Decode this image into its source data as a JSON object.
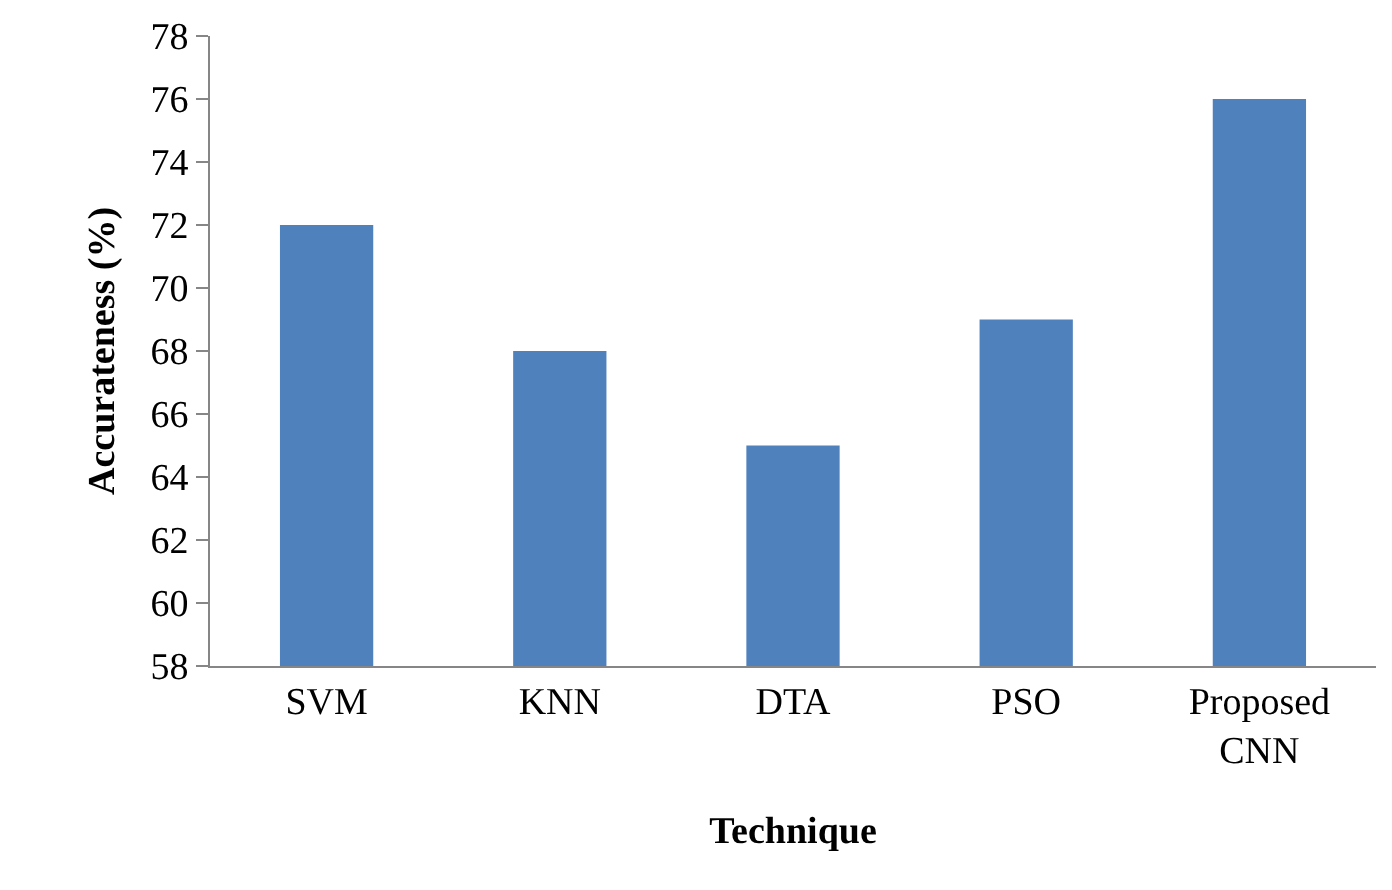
{
  "chart_data": {
    "type": "bar",
    "xlabel": "Technique",
    "ylabel": "Accurateness (%)",
    "categories": [
      "SVM",
      "KNN",
      "DTA",
      "PSO",
      "Proposed CNN"
    ],
    "values": [
      72,
      68,
      65,
      69,
      76
    ],
    "color": "#4f81bd",
    "ylim": [
      58,
      78
    ],
    "yticks": [
      58,
      60,
      62,
      64,
      66,
      68,
      70,
      72,
      74,
      76,
      78
    ],
    "grid": false,
    "legend": false
  }
}
